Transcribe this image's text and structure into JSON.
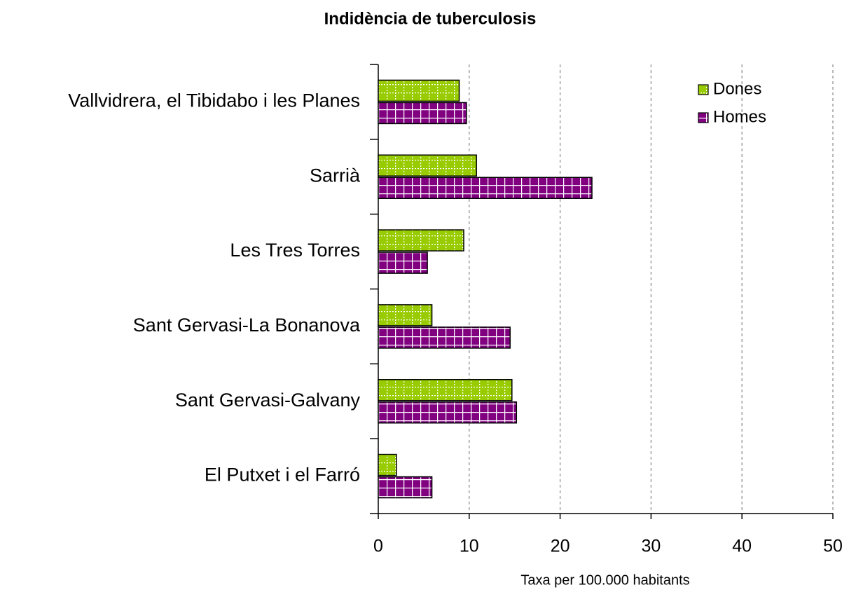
{
  "chart_data": {
    "type": "hbar",
    "title": "Indidència de tuberculosis",
    "x_label": "Taxa per 100.000 habitants",
    "categories": [
      "Vallvidrera, el Tibidabo i les Planes",
      "Sarrià",
      "Les Tres Torres",
      "Sant Gervasi-La Bonanova",
      "Sant Gervasi-Galvany",
      "El Putxet i el Farró"
    ],
    "series": [
      {
        "name": "Dones",
        "color": "#99cc00",
        "values": [
          8.9,
          10.8,
          9.4,
          5.9,
          14.7,
          2.0
        ]
      },
      {
        "name": "Homes",
        "color": "#800080",
        "values": [
          9.7,
          23.5,
          5.4,
          14.5,
          15.2,
          5.9
        ]
      }
    ],
    "xlim": [
      0,
      50
    ],
    "xticks": [
      0,
      10,
      20,
      30,
      40,
      50
    ],
    "grid": true,
    "legend": "top-right"
  }
}
